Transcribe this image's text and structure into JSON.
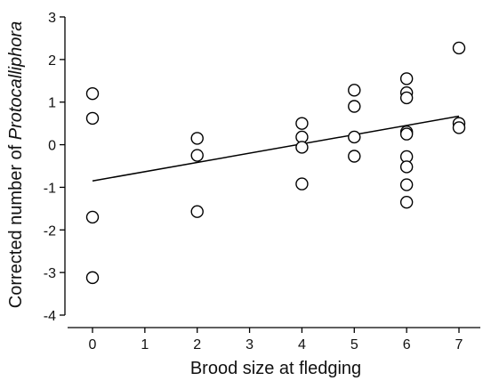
{
  "chart_data": {
    "type": "scatter",
    "title": "",
    "xlabel": "Brood size at fledging",
    "ylabel_prefix": "Corrected number of ",
    "ylabel_italic": "Protocalliphora",
    "x_ticks": [
      0,
      1,
      2,
      3,
      4,
      5,
      6,
      7
    ],
    "y_ticks": [
      -4,
      -3,
      -2,
      -1,
      0,
      1,
      2,
      3
    ],
    "xlim": [
      -0.5,
      7.5
    ],
    "ylim": [
      -4,
      3
    ],
    "grid": false,
    "points": [
      {
        "x": 0,
        "y": 1.2
      },
      {
        "x": 0,
        "y": 0.62
      },
      {
        "x": 0,
        "y": -1.7
      },
      {
        "x": 0,
        "y": -3.12
      },
      {
        "x": 2,
        "y": 0.15
      },
      {
        "x": 2,
        "y": -0.25
      },
      {
        "x": 2,
        "y": -1.57
      },
      {
        "x": 4,
        "y": 0.5
      },
      {
        "x": 4,
        "y": 0.18
      },
      {
        "x": 4,
        "y": -0.06
      },
      {
        "x": 4,
        "y": -0.92
      },
      {
        "x": 5,
        "y": 1.28
      },
      {
        "x": 5,
        "y": 0.9
      },
      {
        "x": 5,
        "y": 0.18
      },
      {
        "x": 5,
        "y": -0.27
      },
      {
        "x": 6,
        "y": 1.55
      },
      {
        "x": 6,
        "y": 1.22
      },
      {
        "x": 6,
        "y": 1.1
      },
      {
        "x": 6,
        "y": 0.3
      },
      {
        "x": 6,
        "y": 0.25
      },
      {
        "x": 6,
        "y": -0.28
      },
      {
        "x": 6,
        "y": -0.52
      },
      {
        "x": 6,
        "y": -0.94
      },
      {
        "x": 6,
        "y": -1.35
      },
      {
        "x": 7,
        "y": 2.27
      },
      {
        "x": 7,
        "y": 0.5
      },
      {
        "x": 7,
        "y": 0.4
      }
    ],
    "trendline": {
      "x": [
        0,
        7
      ],
      "y": [
        -0.85,
        0.67
      ]
    },
    "colors": {
      "marker_stroke": "#000000",
      "marker_fill": "#ffffff",
      "line": "#000000",
      "axis": "#000000"
    }
  }
}
